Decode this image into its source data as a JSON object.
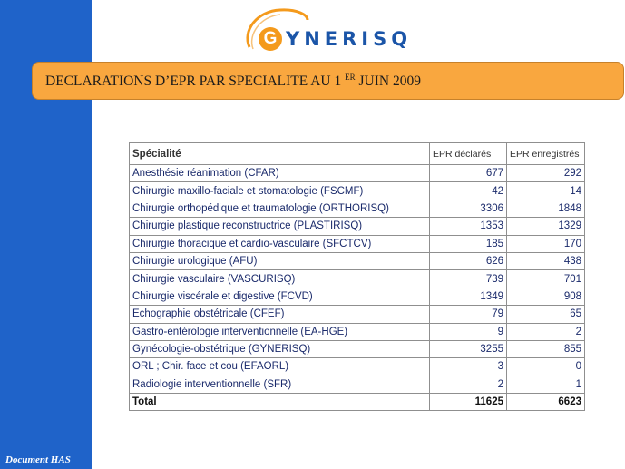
{
  "logo": {
    "letter": "G",
    "text": "YNERISQ",
    "ring_color": "#f49a1c",
    "text_color": "#1b55a8"
  },
  "banner": {
    "title_main": "DECLARATIONS D’EPR PAR SPECIALITE AU 1 ",
    "title_sup": "ER",
    "title_end": " JUIN 2009",
    "background": "#f9a73f"
  },
  "sidebar": {
    "footer": "Document HAS",
    "background": "#1f63c9"
  },
  "table": {
    "headers": [
      "Spécialité",
      "EPR déclarés",
      "EPR enregistrés"
    ],
    "rows": [
      [
        "Anesthésie réanimation (CFAR)",
        "677",
        "292"
      ],
      [
        "Chirurgie maxillo-faciale et stomatologie (FSCMF)",
        "42",
        "14"
      ],
      [
        "Chirurgie orthopédique et traumatologie (ORTHORISQ)",
        "3306",
        "1848"
      ],
      [
        "Chirurgie plastique reconstructrice (PLASTIRISQ)",
        "1353",
        "1329"
      ],
      [
        "Chirurgie thoracique et cardio-vasculaire (SFCTCV)",
        "185",
        "170"
      ],
      [
        "Chirurgie urologique (AFU)",
        "626",
        "438"
      ],
      [
        "Chirurgie vasculaire (VASCURISQ)",
        "739",
        "701"
      ],
      [
        "Chirurgie viscérale et digestive (FCVD)",
        "1349",
        "908"
      ],
      [
        "Echographie obstétricale (CFEF)",
        "79",
        "65"
      ],
      [
        "Gastro-entérologie interventionnelle (EA-HGE)",
        "9",
        "2"
      ],
      [
        "Gynécologie-obstétrique (GYNERISQ)",
        "3255",
        "855"
      ],
      [
        "ORL ; Chir. face et cou (EFAORL)",
        "3",
        "0"
      ],
      [
        "Radiologie interventionnelle (SFR)",
        "2",
        "1"
      ]
    ],
    "total": [
      "Total",
      "11625",
      "6623"
    ]
  }
}
